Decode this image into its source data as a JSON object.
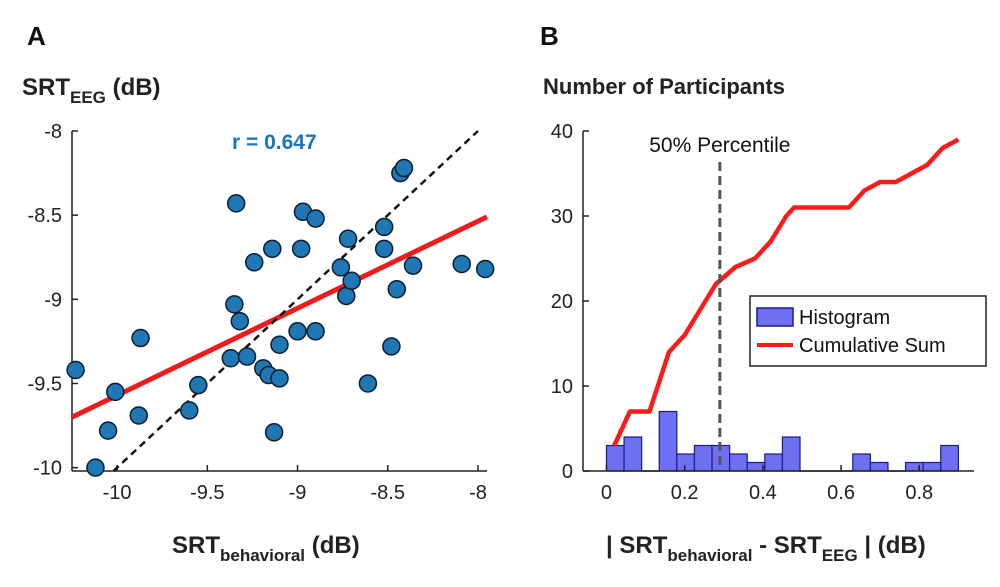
{
  "colors": {
    "point": "#1f77b4",
    "fit": "#ee1c1c",
    "hist": "#6f6ff2",
    "cum": "#ff1a1a",
    "rtext": "#1a75bc",
    "dashed": "#555555"
  },
  "chart_data": [
    {
      "panel": "A",
      "type": "scatter",
      "ylabel_main": "SRT",
      "ylabel_sub": "EEG",
      "ylabel_unit": " (dB)",
      "xlabel_main": "SRT",
      "xlabel_sub": "behavioral",
      "xlabel_unit": "  (dB)",
      "annotation": "r = 0.647",
      "xlim": [
        -10.25,
        -7.95
      ],
      "ylim": [
        -10.02,
        -8.0
      ],
      "xticks": [
        -10,
        -9.5,
        -9,
        -8.5,
        -8
      ],
      "xtick_labels": [
        "-10",
        "-9.5",
        "-9",
        "-8.5",
        "-8"
      ],
      "yticks": [
        -10,
        -9.5,
        -9,
        -8.5,
        -8
      ],
      "ytick_labels": [
        "-10",
        "-9.5",
        "-9",
        "-8.5",
        "-8"
      ],
      "points": [
        {
          "x": -10.23,
          "y": -9.42
        },
        {
          "x": -10.12,
          "y": -10.0
        },
        {
          "x": -10.05,
          "y": -9.78
        },
        {
          "x": -10.01,
          "y": -9.55
        },
        {
          "x": -9.88,
          "y": -9.69
        },
        {
          "x": -9.87,
          "y": -9.23
        },
        {
          "x": -9.6,
          "y": -9.66
        },
        {
          "x": -9.55,
          "y": -9.51
        },
        {
          "x": -9.37,
          "y": -9.35
        },
        {
          "x": -9.35,
          "y": -9.03
        },
        {
          "x": -9.34,
          "y": -8.43
        },
        {
          "x": -9.32,
          "y": -9.13
        },
        {
          "x": -9.28,
          "y": -9.34
        },
        {
          "x": -9.24,
          "y": -8.78
        },
        {
          "x": -9.19,
          "y": -9.41
        },
        {
          "x": -9.16,
          "y": -9.45
        },
        {
          "x": -9.14,
          "y": -8.7
        },
        {
          "x": -9.13,
          "y": -9.79
        },
        {
          "x": -9.1,
          "y": -9.27
        },
        {
          "x": -9.1,
          "y": -9.47
        },
        {
          "x": -9.0,
          "y": -9.19
        },
        {
          "x": -8.98,
          "y": -8.7
        },
        {
          "x": -8.97,
          "y": -8.48
        },
        {
          "x": -8.9,
          "y": -8.52
        },
        {
          "x": -8.9,
          "y": -9.19
        },
        {
          "x": -8.76,
          "y": -8.81
        },
        {
          "x": -8.73,
          "y": -8.98
        },
        {
          "x": -8.72,
          "y": -8.64
        },
        {
          "x": -8.7,
          "y": -8.89
        },
        {
          "x": -8.61,
          "y": -9.5
        },
        {
          "x": -8.52,
          "y": -8.7
        },
        {
          "x": -8.52,
          "y": -8.57
        },
        {
          "x": -8.48,
          "y": -9.28
        },
        {
          "x": -8.45,
          "y": -8.94
        },
        {
          "x": -8.43,
          "y": -8.25
        },
        {
          "x": -8.41,
          "y": -8.22
        },
        {
          "x": -8.36,
          "y": -8.8
        },
        {
          "x": -8.09,
          "y": -8.79
        },
        {
          "x": -7.96,
          "y": -8.82
        }
      ],
      "fit_line": {
        "x": [
          -10.25,
          -7.95
        ],
        "y": [
          -9.7,
          -8.51
        ]
      },
      "identity_line": {
        "x": [
          -10.02,
          -8.0
        ],
        "y": [
          -10.02,
          -8.0
        ]
      }
    },
    {
      "panel": "B",
      "type": "bar+line",
      "title": "Number of Participants",
      "xlabel_pre": "| SRT",
      "xlabel_sub1": "behavioral",
      "xlabel_mid": " - SRT",
      "xlabel_sub2": "EEG",
      "xlabel_post": " | (dB)",
      "xlim": [
        -0.06,
        0.94
      ],
      "ylim": [
        0,
        40
      ],
      "xticks": [
        0,
        0.2,
        0.4,
        0.6,
        0.8
      ],
      "xtick_labels": [
        "0",
        "0.2",
        "0.4",
        "0.6",
        "0.8"
      ],
      "yticks": [
        0,
        10,
        20,
        30,
        40
      ],
      "ytick_labels": [
        "0",
        "10",
        "20",
        "30",
        "40"
      ],
      "percentile_x": 0.29,
      "percentile_label": "50% Percentile",
      "histogram": {
        "name": "Histogram",
        "bin_edges": [
          0.0,
          0.045,
          0.09,
          0.135,
          0.18,
          0.225,
          0.27,
          0.315,
          0.36,
          0.405,
          0.45,
          0.495,
          0.54,
          0.585,
          0.63,
          0.675,
          0.72,
          0.765,
          0.81,
          0.855,
          0.9
        ],
        "counts": [
          3,
          4,
          0,
          7,
          2,
          3,
          3,
          2,
          1,
          2,
          4,
          0,
          0,
          0,
          2,
          1,
          0,
          1,
          1,
          3
        ]
      },
      "cumulative": {
        "name": "Cumulative Sum",
        "x": [
          0.02,
          0.06,
          0.11,
          0.16,
          0.2,
          0.24,
          0.28,
          0.33,
          0.38,
          0.42,
          0.46,
          0.48,
          0.55,
          0.62,
          0.66,
          0.7,
          0.74,
          0.78,
          0.82,
          0.86,
          0.9
        ],
        "y": [
          3,
          7,
          7,
          14,
          16,
          19,
          22,
          24,
          25,
          27,
          30,
          31,
          31,
          31,
          33,
          34,
          34,
          35,
          36,
          38,
          39
        ]
      }
    }
  ]
}
